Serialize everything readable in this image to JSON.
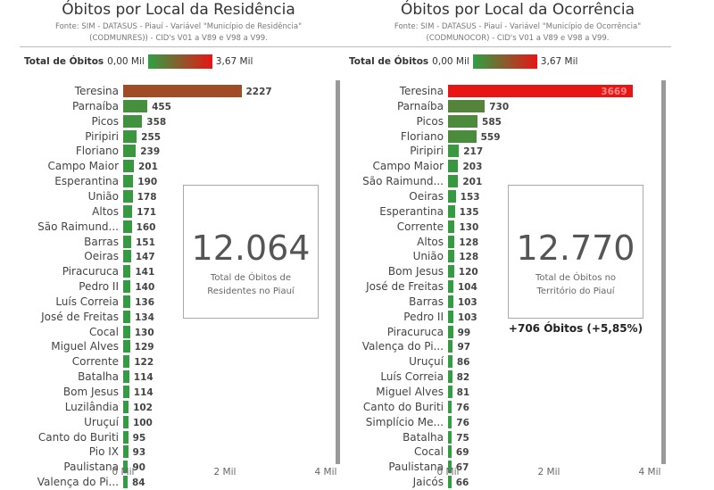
{
  "left": {
    "title": "Óbitos por Local da Residência",
    "source": "Fonte: SIM - DATASUS - Piauí - Variável \"Município de Residência\" (CODMUNRES)) - CID's V01 a V89 e V98 a V99.",
    "legend": {
      "label": "Total de Óbitos",
      "min": "0,00 Mil",
      "max": "3,67 Mil"
    },
    "card": {
      "value": "12.064",
      "caption": "Total de Óbitos de Residentes no Piauí"
    },
    "axis_ticks": [
      "0 Mil",
      "2 Mil",
      "4 Mil"
    ],
    "rows": [
      [
        "Teresina",
        2227
      ],
      [
        "Parnaíba",
        455
      ],
      [
        "Picos",
        358
      ],
      [
        "Piripiri",
        255
      ],
      [
        "Floriano",
        239
      ],
      [
        "Campo Maior",
        201
      ],
      [
        "Esperantina",
        190
      ],
      [
        "União",
        178
      ],
      [
        "Altos",
        171
      ],
      [
        "São Raimund...",
        160
      ],
      [
        "Barras",
        151
      ],
      [
        "Oeiras",
        147
      ],
      [
        "Piracuruca",
        141
      ],
      [
        "Pedro II",
        140
      ],
      [
        "Luís Correia",
        136
      ],
      [
        "José de Freitas",
        134
      ],
      [
        "Cocal",
        130
      ],
      [
        "Miguel Alves",
        129
      ],
      [
        "Corrente",
        122
      ],
      [
        "Batalha",
        114
      ],
      [
        "Bom Jesus",
        114
      ],
      [
        "Luzilândia",
        102
      ],
      [
        "Uruçuí",
        100
      ],
      [
        "Canto do Buriti",
        95
      ],
      [
        "Pio IX",
        93
      ],
      [
        "Paulistana",
        90
      ],
      [
        "Valença do Pi...",
        84
      ]
    ]
  },
  "right": {
    "title": "Óbitos por Local da Ocorrência",
    "source": "Fonte: SIM - DATASUS - Piauí - Variável \"Município de Ocorrência\" (CODMUNOCOR) - CID's V01 a V89 e V98 a V99.",
    "legend": {
      "label": "Total de Óbitos",
      "min": "0,00 Mil",
      "max": "3,67 Mil"
    },
    "card": {
      "value": "12.770",
      "caption": "Total de Óbitos no Território do Piauí"
    },
    "difference": "+706 Óbitos (+5,85%)",
    "axis_ticks": [
      "0 Mil",
      "2 Mil",
      "4 Mil"
    ],
    "rows": [
      [
        "Teresina",
        3669
      ],
      [
        "Parnaíba",
        730
      ],
      [
        "Picos",
        585
      ],
      [
        "Floriano",
        559
      ],
      [
        "Piripiri",
        217
      ],
      [
        "Campo Maior",
        203
      ],
      [
        "São Raimund...",
        201
      ],
      [
        "Oeiras",
        153
      ],
      [
        "Esperantina",
        135
      ],
      [
        "Corrente",
        130
      ],
      [
        "Altos",
        128
      ],
      [
        "União",
        128
      ],
      [
        "Bom Jesus",
        120
      ],
      [
        "José de Freitas",
        104
      ],
      [
        "Barras",
        103
      ],
      [
        "Pedro II",
        103
      ],
      [
        "Piracuruca",
        99
      ],
      [
        "Valença do Pi...",
        97
      ],
      [
        "Uruçuí",
        86
      ],
      [
        "Luís Correia",
        82
      ],
      [
        "Miguel Alves",
        81
      ],
      [
        "Canto do Buriti",
        76
      ],
      [
        "Simplício Me...",
        76
      ],
      [
        "Batalha",
        75
      ],
      [
        "Cocal",
        69
      ],
      [
        "Paulistana",
        67
      ],
      [
        "Jaicós",
        66
      ]
    ]
  },
  "colors": {
    "low": "#2ea043",
    "high": "#e81515"
  },
  "color_scale_max": 3670,
  "axis_max": 4000
}
